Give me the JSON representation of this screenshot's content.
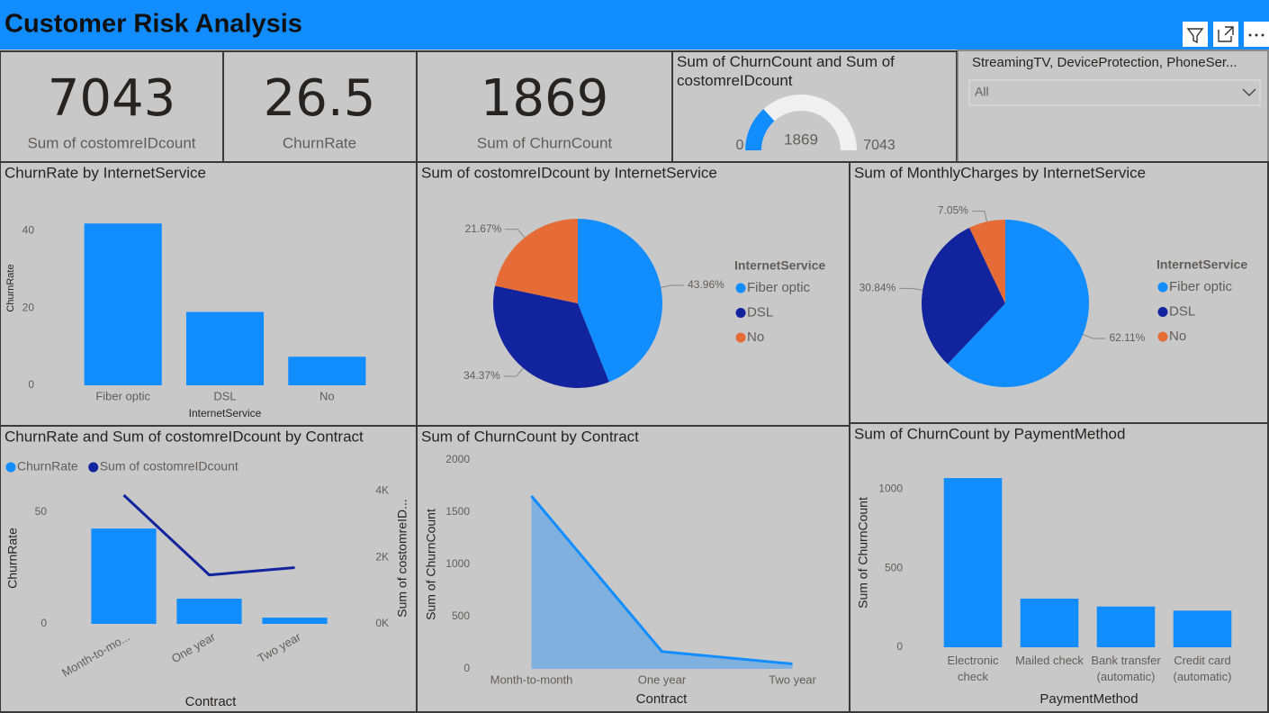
{
  "header": {
    "title": "Customer Risk Analysis"
  },
  "cards": [
    {
      "value": 7043,
      "label": "Sum of costomreIDcount"
    },
    {
      "value": 26.5,
      "label": "ChurnRate"
    },
    {
      "value": 1869,
      "label": "Sum of ChurnCount"
    }
  ],
  "slicer": {
    "title": "StreamingTV, DeviceProtection, PhoneSer...",
    "selection": "All"
  },
  "chart_data": [
    {
      "type": "gauge",
      "title": "Sum of ChurnCount and Sum of costomreIDcount",
      "value": 1869,
      "ylim": [
        0,
        7043
      ],
      "color": "#118DFF",
      "track_color": "#F0F0F0"
    },
    {
      "type": "bar",
      "title": "ChurnRate by InternetService",
      "categories": [
        "Fiber optic",
        "DSL",
        "No"
      ],
      "values": [
        41.9,
        19.0,
        7.4
      ],
      "color": "#118DFF",
      "xlabel": "InternetService",
      "ylabel": "ChurnRate",
      "ylim": [
        0,
        45
      ],
      "yticks": [
        0,
        20,
        40
      ]
    },
    {
      "type": "pie",
      "title": "Sum of costomreIDcount by InternetService",
      "legend_title": "InternetService",
      "categories": [
        "Fiber optic",
        "DSL",
        "No"
      ],
      "values": [
        43.96,
        34.37,
        21.67
      ],
      "value_labels": [
        "43.96%",
        "34.37%",
        "21.67%"
      ],
      "colors": [
        "#118DFF",
        "#12239E",
        "#E66C37"
      ]
    },
    {
      "type": "pie",
      "title": "Sum of MonthlyCharges by InternetService",
      "legend_title": "InternetService",
      "categories": [
        "Fiber optic",
        "DSL",
        "No"
      ],
      "values": [
        62.11,
        30.84,
        7.05
      ],
      "value_labels": [
        "62.11%",
        "30.84%",
        "7.05%"
      ],
      "colors": [
        "#118DFF",
        "#12239E",
        "#E66C37"
      ]
    },
    {
      "type": "combo",
      "title": "ChurnRate and Sum of costomreIDcount by Contract",
      "categories": [
        "Month-to-mo...",
        "One year",
        "Two year"
      ],
      "series": [
        {
          "name": "ChurnRate",
          "color": "#118DFF",
          "values": [
            42.7,
            11.3,
            2.8
          ]
        },
        {
          "name": "Sum of costomreIDcount",
          "color": "#12239E",
          "values": [
            3875,
            1473,
            1695
          ],
          "axis": "y2"
        }
      ],
      "xlabel": "Contract",
      "ylabel": "ChurnRate",
      "y2label": "Sum of costomreID...",
      "ylim": [
        0,
        62.5
      ],
      "yticks": [
        0,
        50
      ],
      "y2lim": [
        0,
        4200
      ],
      "y2ticks": [
        {
          "value": 0,
          "label": "0K"
        },
        {
          "value": 2000,
          "label": "2K"
        },
        {
          "value": 4000,
          "label": "4K"
        }
      ]
    },
    {
      "type": "area",
      "title": "Sum of ChurnCount by Contract",
      "categories": [
        "Month-to-month",
        "One year",
        "Two year"
      ],
      "values": [
        1655,
        166,
        48
      ],
      "color": "#118DFF",
      "xlabel": "Contract",
      "ylabel": "Sum of ChurnCount",
      "ylim": [
        0,
        2000
      ],
      "yticks": [
        0,
        500,
        1000,
        1500,
        2000
      ]
    },
    {
      "type": "bar",
      "title": "Sum of ChurnCount by PaymentMethod",
      "categories": [
        "Electronic check",
        "Mailed check",
        "Bank transfer (automatic)",
        "Credit card (automatic)"
      ],
      "values": [
        1071,
        308,
        258,
        232
      ],
      "color": "#118DFF",
      "xlabel": "PaymentMethod",
      "ylabel": "Sum of ChurnCount",
      "ylim": [
        0,
        1100
      ],
      "yticks": [
        0,
        500,
        1000
      ]
    }
  ]
}
